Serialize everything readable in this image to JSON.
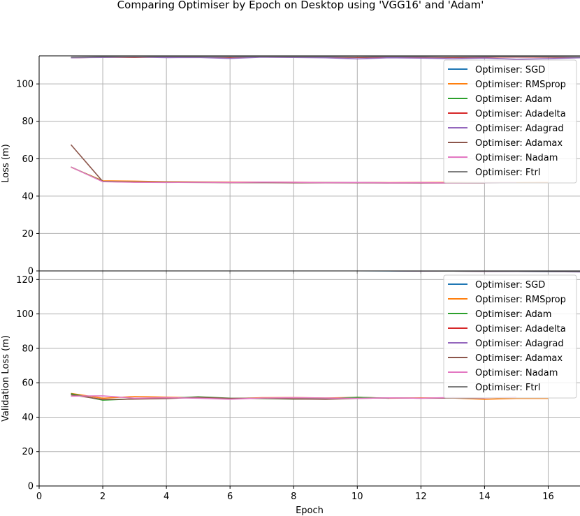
{
  "figure": {
    "title": "Comparing Optimiser by Epoch on Desktop using 'VGG16' and 'Adam'"
  },
  "chart_data": [
    {
      "type": "line",
      "title": "",
      "xlabel": "",
      "ylabel": "Loss (m)",
      "xlim": [
        0,
        17
      ],
      "ylim": [
        0,
        115
      ],
      "xticks": [
        0,
        2,
        4,
        6,
        8,
        10,
        12,
        14,
        16
      ],
      "yticks": [
        0,
        20,
        40,
        60,
        80,
        100
      ],
      "grid": true,
      "legend_position": "top-right",
      "series": [
        {
          "name": "Optimiser: SGD",
          "color": "#1f77b4",
          "x": [
            1,
            2,
            3,
            4,
            5,
            6,
            7,
            8,
            9,
            10,
            11,
            12,
            13,
            14,
            15,
            16,
            17
          ],
          "y": [
            114.2,
            114.4,
            114.3,
            114.5,
            114.3,
            114.4,
            114.5,
            114.3,
            114.4,
            114.2,
            114.3,
            114.4,
            114.2,
            114.3,
            114.4,
            114.3,
            114.2
          ]
        },
        {
          "name": "Optimiser: RMSprop",
          "color": "#ff7f0e",
          "x": [
            1,
            2,
            3,
            4,
            5,
            6,
            7,
            8,
            9,
            10,
            11,
            12,
            13,
            14,
            15,
            16
          ],
          "y": [
            55.5,
            48.2,
            48.0,
            47.7,
            47.6,
            47.5,
            47.5,
            47.4,
            47.3,
            47.3,
            47.2,
            47.3,
            47.3,
            47.2,
            47.2,
            47.3
          ]
        },
        {
          "name": "Optimiser: Adam",
          "color": "#2ca02c",
          "x": [
            1,
            2,
            3,
            4,
            5,
            6,
            7,
            8,
            9,
            10,
            11
          ],
          "y": [
            55.6,
            47.9,
            47.6,
            47.5,
            47.4,
            47.3,
            47.3,
            47.2,
            47.2,
            47.2,
            47.1
          ]
        },
        {
          "name": "Optimiser: Adadelta",
          "color": "#d62728",
          "x": [
            1,
            2,
            3,
            4,
            5,
            6,
            7,
            8,
            9,
            10,
            11,
            12,
            13,
            14,
            15,
            16,
            17
          ],
          "y": [
            114.0,
            114.3,
            114.2,
            114.4,
            114.3,
            114.2,
            114.4,
            114.3,
            114.3,
            114.2,
            114.4,
            114.3,
            114.2,
            114.3,
            114.4,
            114.3,
            114.2
          ]
        },
        {
          "name": "Optimiser: Adagrad",
          "color": "#9467bd",
          "x": [
            1,
            2,
            3,
            4,
            5,
            6,
            7,
            8,
            9,
            10,
            11,
            12,
            13,
            14,
            15,
            16,
            17
          ],
          "y": [
            114.0,
            114.2,
            114.4,
            114.1,
            114.2,
            113.6,
            114.3,
            114.2,
            114.0,
            113.4,
            114.0,
            113.8,
            113.5,
            113.8,
            113.2,
            113.5,
            114.0
          ]
        },
        {
          "name": "Optimiser: Adamax",
          "color": "#8c564b",
          "x": [
            1,
            2,
            3,
            4,
            5,
            6,
            7,
            8,
            9,
            10,
            11,
            12,
            13,
            14
          ],
          "y": [
            67.5,
            47.8,
            47.5,
            47.4,
            47.3,
            47.2,
            47.2,
            47.1,
            47.1,
            47.1,
            47.0,
            47.0,
            47.0,
            47.0
          ]
        },
        {
          "name": "Optimiser: Nadam",
          "color": "#e377c2",
          "x": [
            1,
            2,
            3,
            4,
            5,
            6,
            7,
            8,
            9,
            10,
            11,
            12,
            13,
            14,
            15
          ],
          "y": [
            55.6,
            47.7,
            47.4,
            47.3,
            47.4,
            47.3,
            47.5,
            47.4,
            47.2,
            47.3,
            47.1,
            47.2,
            47.0,
            47.1,
            47.2
          ]
        },
        {
          "name": "Optimiser: Ftrl",
          "color": "#7f7f7f",
          "x": [
            1,
            2,
            3,
            4,
            5,
            6,
            7,
            8,
            9,
            10,
            11,
            12,
            13,
            14,
            15,
            16,
            17
          ],
          "y": [
            114.3,
            114.5,
            114.4,
            114.6,
            114.5,
            114.4,
            114.6,
            114.5,
            114.5,
            114.4,
            114.6,
            114.5,
            114.4,
            114.5,
            114.6,
            114.5,
            114.4
          ]
        }
      ]
    },
    {
      "type": "line",
      "title": "",
      "xlabel": "Epoch",
      "ylabel": "Validation Loss (m)",
      "xlim": [
        0,
        17
      ],
      "ylim": [
        0,
        125
      ],
      "xticks": [
        0,
        2,
        4,
        6,
        8,
        10,
        12,
        14,
        16
      ],
      "yticks": [
        0,
        20,
        40,
        60,
        80,
        100,
        120
      ],
      "grid": true,
      "legend_position": "top-right",
      "series": [
        {
          "name": "Optimiser: SGD",
          "color": "#1f77b4",
          "x": [
            1,
            2,
            3,
            4,
            5,
            6,
            7,
            8,
            9,
            10,
            11,
            12,
            13,
            14,
            15,
            16,
            17
          ],
          "y": [
            125.6,
            125.5,
            125.6,
            125.4,
            125.5,
            125.3,
            125.4,
            125.3,
            125.2,
            125.1,
            125.0,
            124.9,
            124.9,
            124.8,
            124.7,
            124.6,
            124.5
          ]
        },
        {
          "name": "Optimiser: RMSprop",
          "color": "#ff7f0e",
          "x": [
            1,
            2,
            3,
            4,
            5,
            6,
            7,
            8,
            9,
            10,
            11,
            12,
            13,
            14,
            15,
            16
          ],
          "y": [
            53.8,
            51.0,
            52.0,
            51.6,
            51.3,
            50.7,
            51.3,
            51.4,
            51.1,
            51.5,
            51.0,
            51.2,
            51.1,
            50.4,
            50.9,
            50.9
          ]
        },
        {
          "name": "Optimiser: Adam",
          "color": "#2ca02c",
          "x": [
            1,
            2,
            3,
            4,
            5,
            6,
            7,
            8,
            9,
            10,
            11
          ],
          "y": [
            53.6,
            49.9,
            50.6,
            50.9,
            51.8,
            51.0,
            50.8,
            50.5,
            50.7,
            51.5,
            51.0
          ]
        },
        {
          "name": "Optimiser: Adadelta",
          "color": "#d62728",
          "x": [
            1,
            2,
            3,
            4,
            5,
            6,
            7,
            8,
            9,
            10,
            11,
            12,
            13,
            14,
            15,
            16,
            17
          ],
          "y": [
            125.6,
            125.6,
            125.5,
            125.5,
            125.4,
            125.4,
            125.3,
            125.3,
            125.2,
            125.2,
            125.1,
            125.0,
            124.9,
            124.8,
            124.8,
            124.7,
            124.6
          ]
        },
        {
          "name": "Optimiser: Adagrad",
          "color": "#9467bd",
          "x": [
            1,
            2,
            3,
            4,
            5,
            6,
            7,
            8,
            9,
            10,
            11,
            12,
            13,
            14,
            15,
            16,
            17
          ],
          "y": [
            125.7,
            125.6,
            125.6,
            125.5,
            125.5,
            125.4,
            125.4,
            125.3,
            125.3,
            125.2,
            125.1,
            125.0,
            124.9,
            124.8,
            124.7,
            124.6,
            124.4
          ]
        },
        {
          "name": "Optimiser: Adamax",
          "color": "#8c564b",
          "x": [
            1,
            2,
            3,
            4,
            5,
            6,
            7,
            8,
            9,
            10,
            11,
            12,
            13,
            14
          ],
          "y": [
            53.0,
            50.3,
            50.5,
            50.8,
            51.5,
            50.9,
            51.0,
            50.6,
            50.4,
            50.9,
            51.2,
            51.0,
            51.1,
            51.0
          ]
        },
        {
          "name": "Optimiser: Nadam",
          "color": "#e377c2",
          "x": [
            1,
            2,
            3,
            4,
            5,
            6,
            7,
            8,
            9,
            10,
            11,
            12,
            13,
            14,
            15
          ],
          "y": [
            52.2,
            52.4,
            51.0,
            51.3,
            51.0,
            50.4,
            51.1,
            51.3,
            51.1,
            50.9,
            51.2,
            51.0,
            51.4,
            51.1,
            51.7
          ]
        },
        {
          "name": "Optimiser: Ftrl",
          "color": "#7f7f7f",
          "x": [
            1,
            2,
            3,
            4,
            5,
            6,
            7,
            8,
            9,
            10,
            11,
            12,
            13,
            14,
            15,
            16,
            17
          ],
          "y": [
            125.7,
            125.6,
            125.6,
            125.5,
            125.5,
            125.4,
            125.4,
            125.3,
            125.3,
            125.2,
            125.1,
            125.0,
            124.9,
            124.9,
            124.8,
            124.7,
            124.6
          ]
        }
      ]
    }
  ]
}
